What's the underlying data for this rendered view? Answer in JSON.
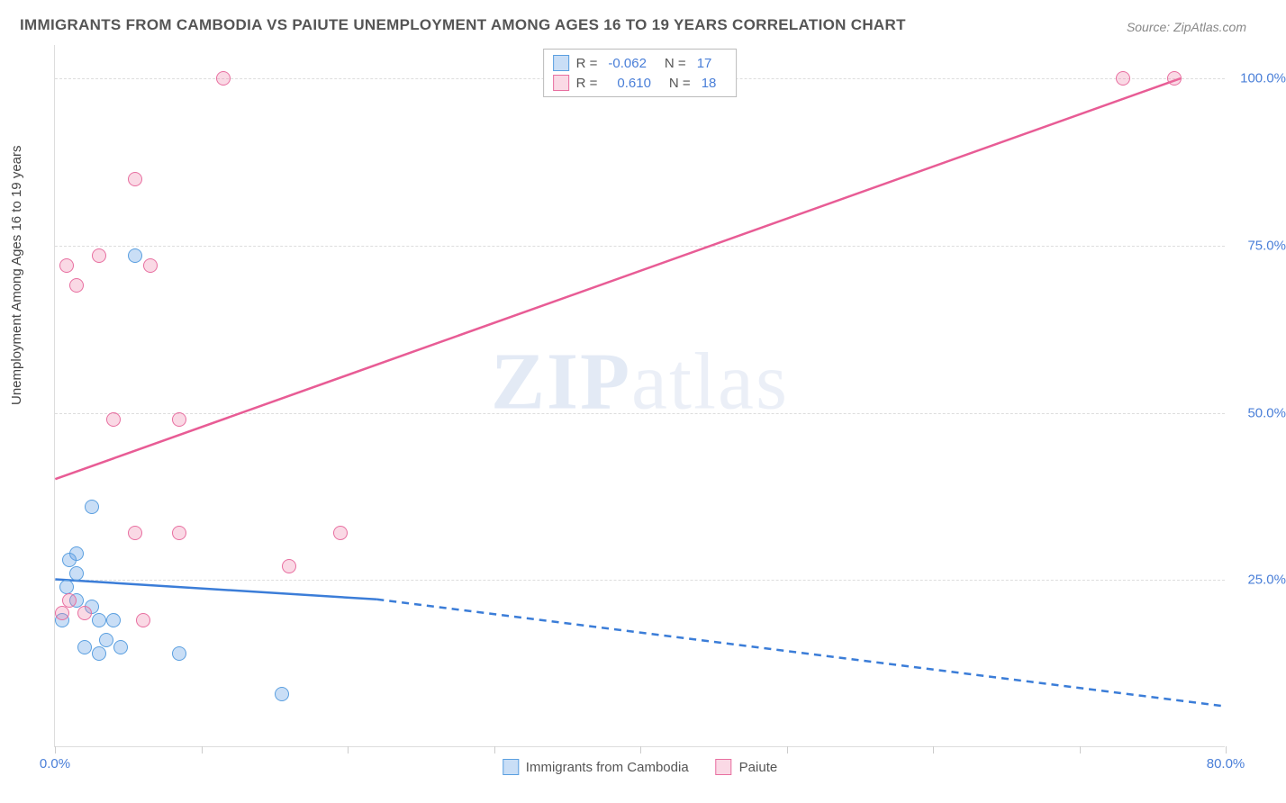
{
  "title": "IMMIGRANTS FROM CAMBODIA VS PAIUTE UNEMPLOYMENT AMONG AGES 16 TO 19 YEARS CORRELATION CHART",
  "source": "Source: ZipAtlas.com",
  "ylabel": "Unemployment Among Ages 16 to 19 years",
  "watermark_a": "ZIP",
  "watermark_b": "atlas",
  "chart": {
    "type": "scatter-with-regression",
    "background_color": "#ffffff",
    "grid_color": "#dddddd",
    "axis_label_color": "#4a7fd8",
    "text_color": "#555555",
    "xlim": [
      0,
      80
    ],
    "ylim": [
      0,
      105
    ],
    "x_ticks": [
      0,
      10,
      20,
      30,
      40,
      50,
      60,
      70,
      80
    ],
    "x_tick_labels": {
      "0": "0.0%",
      "80": "80.0%"
    },
    "y_gridlines": [
      25,
      50,
      75,
      100
    ],
    "y_tick_labels": {
      "25": "25.0%",
      "50": "50.0%",
      "75": "75.0%",
      "100": "100.0%"
    },
    "marker_radius": 8,
    "marker_stroke_width": 1.5,
    "line_width": 2.5,
    "series": [
      {
        "name": "Immigrants from Cambodia",
        "color_fill": "rgba(100,160,230,0.35)",
        "color_stroke": "#5a9fe0",
        "line_color": "#3b7dd8",
        "R": "-0.062",
        "N": "17",
        "points": [
          {
            "x": 5.5,
            "y": 73.5
          },
          {
            "x": 2.5,
            "y": 36
          },
          {
            "x": 1.5,
            "y": 29
          },
          {
            "x": 1.0,
            "y": 28
          },
          {
            "x": 1.5,
            "y": 26
          },
          {
            "x": 0.8,
            "y": 24
          },
          {
            "x": 1.5,
            "y": 22
          },
          {
            "x": 2.5,
            "y": 21
          },
          {
            "x": 3.0,
            "y": 19
          },
          {
            "x": 0.5,
            "y": 19
          },
          {
            "x": 4.0,
            "y": 19
          },
          {
            "x": 3.5,
            "y": 16
          },
          {
            "x": 2.0,
            "y": 15
          },
          {
            "x": 4.5,
            "y": 15
          },
          {
            "x": 3.0,
            "y": 14
          },
          {
            "x": 8.5,
            "y": 14
          },
          {
            "x": 15.5,
            "y": 8
          }
        ],
        "regression": {
          "solid": {
            "x1": 0,
            "y1": 25,
            "x2": 22,
            "y2": 22
          },
          "dashed": {
            "x1": 22,
            "y1": 22,
            "x2": 80,
            "y2": 6
          }
        }
      },
      {
        "name": "Paiute",
        "color_fill": "rgba(240,130,170,0.30)",
        "color_stroke": "#e86fa0",
        "line_color": "#e85c95",
        "R": "0.610",
        "N": "18",
        "points": [
          {
            "x": 11.5,
            "y": 100
          },
          {
            "x": 73,
            "y": 100
          },
          {
            "x": 76.5,
            "y": 100
          },
          {
            "x": 5.5,
            "y": 85
          },
          {
            "x": 3.0,
            "y": 73.5
          },
          {
            "x": 6.5,
            "y": 72
          },
          {
            "x": 0.8,
            "y": 72
          },
          {
            "x": 1.5,
            "y": 69
          },
          {
            "x": 4.0,
            "y": 49
          },
          {
            "x": 8.5,
            "y": 49
          },
          {
            "x": 5.5,
            "y": 32
          },
          {
            "x": 8.5,
            "y": 32
          },
          {
            "x": 19.5,
            "y": 32
          },
          {
            "x": 16,
            "y": 27
          },
          {
            "x": 1.0,
            "y": 22
          },
          {
            "x": 0.5,
            "y": 20
          },
          {
            "x": 2.0,
            "y": 20
          },
          {
            "x": 6.0,
            "y": 19
          }
        ],
        "regression": {
          "solid": {
            "x1": 0,
            "y1": 40,
            "x2": 77,
            "y2": 100
          }
        }
      }
    ]
  }
}
